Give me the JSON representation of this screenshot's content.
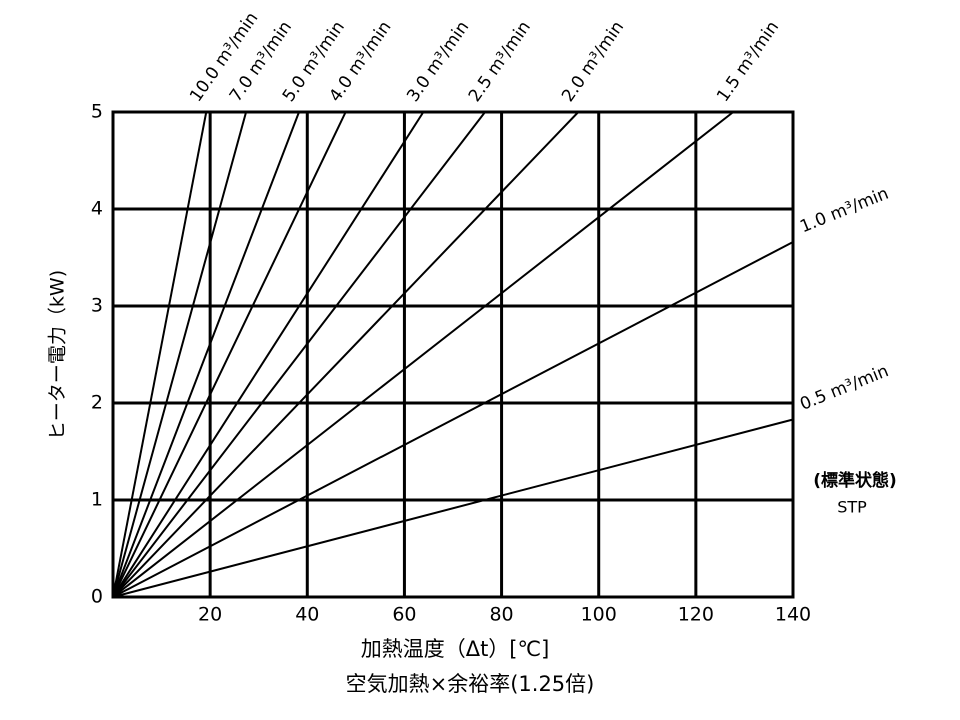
{
  "chart_data": {
    "type": "line",
    "ylabel": "ヒーター電力（kW)",
    "xlabel": "加熱温度（Δt）[℃]",
    "xlabel2": "空気加熱×余裕率(1.25倍)",
    "annotations": [
      "(標準状態)",
      "STP"
    ],
    "xlim": [
      0,
      140
    ],
    "xticks": [
      20,
      40,
      60,
      80,
      100,
      120,
      140
    ],
    "ylim": [
      0,
      5
    ],
    "yticks": [
      0,
      1,
      2,
      3,
      4,
      5
    ],
    "grid": true,
    "color": "#000000",
    "series": [
      {
        "name": "10.0 m³/min",
        "x": [
          0,
          19.2
        ],
        "values": [
          0,
          5
        ]
      },
      {
        "name": "7.0 m³/min",
        "x": [
          0,
          27.4
        ],
        "values": [
          0,
          5
        ]
      },
      {
        "name": "5.0 m³/min",
        "x": [
          0,
          38.3
        ],
        "values": [
          0,
          5
        ]
      },
      {
        "name": "4.0 m³/min",
        "x": [
          0,
          47.9
        ],
        "values": [
          0,
          5
        ]
      },
      {
        "name": "3.0 m³/min",
        "x": [
          0,
          63.9
        ],
        "values": [
          0,
          5
        ]
      },
      {
        "name": "2.5 m³/min",
        "x": [
          0,
          76.6
        ],
        "values": [
          0,
          5
        ]
      },
      {
        "name": "2.0 m³/min",
        "x": [
          0,
          95.8
        ],
        "values": [
          0,
          5
        ]
      },
      {
        "name": "1.5 m³/min",
        "x": [
          0,
          127.7
        ],
        "values": [
          0,
          5
        ]
      },
      {
        "name": "1.0 m³/min",
        "x": [
          0,
          140
        ],
        "values": [
          0,
          3.66
        ]
      },
      {
        "name": "0.5 m³/min",
        "x": [
          0,
          140
        ],
        "values": [
          0,
          1.83
        ]
      }
    ]
  }
}
